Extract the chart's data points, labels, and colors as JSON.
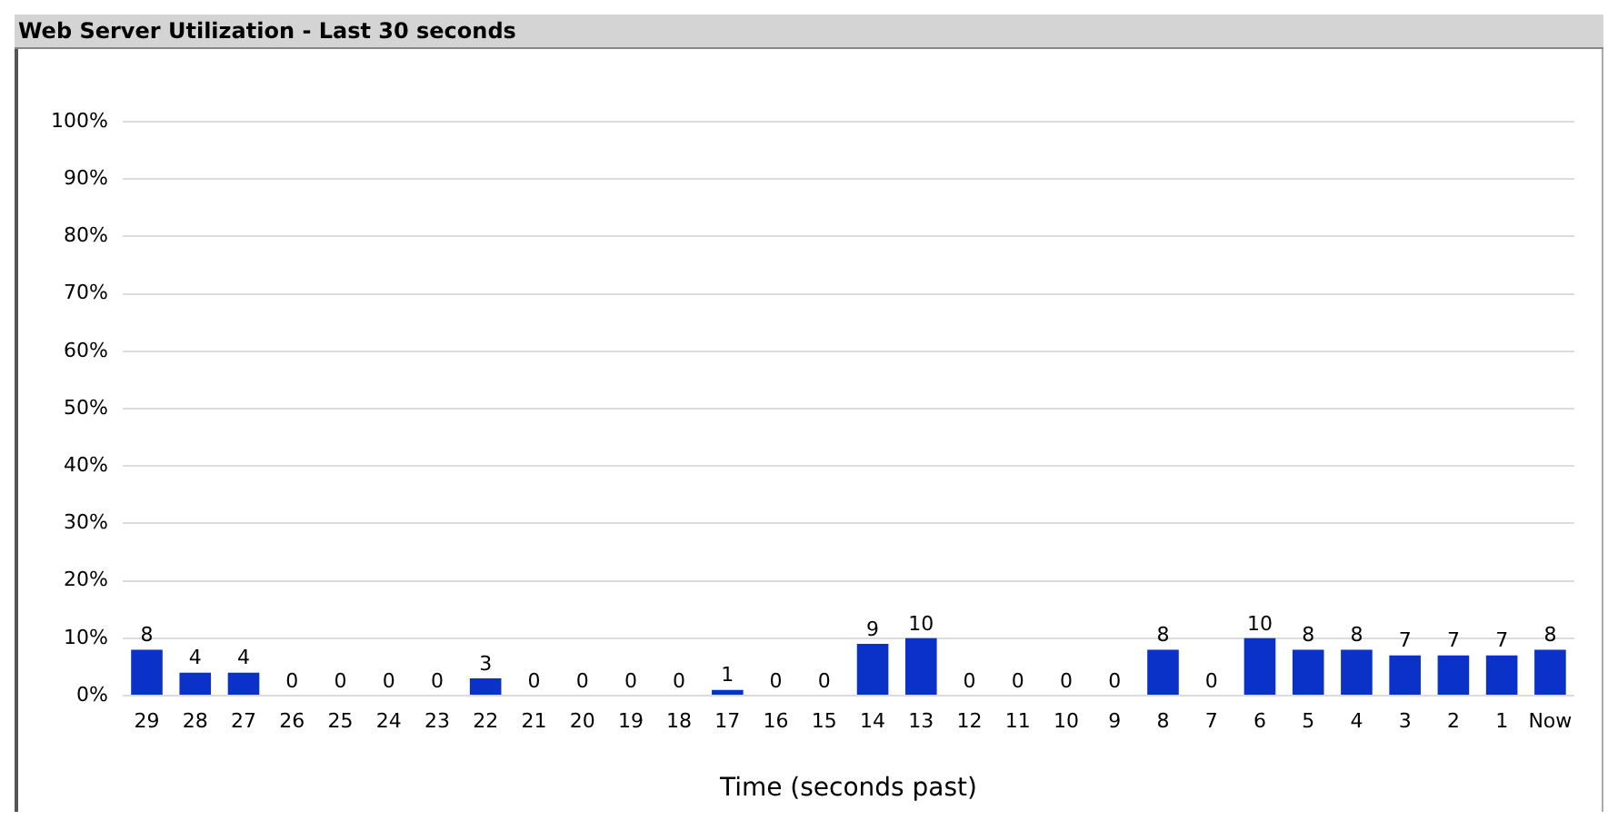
{
  "chart_data": {
    "type": "bar",
    "title": "Web Server Utilization - Last 30 seconds",
    "xlabel": "Time (seconds past)",
    "categories": [
      "29",
      "28",
      "27",
      "26",
      "25",
      "24",
      "23",
      "22",
      "21",
      "20",
      "19",
      "18",
      "17",
      "16",
      "15",
      "14",
      "13",
      "12",
      "11",
      "10",
      "9",
      "8",
      "7",
      "6",
      "5",
      "4",
      "3",
      "2",
      "1",
      "Now"
    ],
    "values": [
      8,
      4,
      4,
      0,
      0,
      0,
      0,
      3,
      0,
      0,
      0,
      0,
      1,
      0,
      0,
      9,
      10,
      0,
      0,
      0,
      0,
      8,
      0,
      10,
      8,
      8,
      7,
      7,
      7,
      8
    ],
    "color": "#0a32c8",
    "ylim": [
      0,
      100
    ],
    "yticks": [
      {
        "value": 0,
        "label": "0%"
      },
      {
        "value": 10,
        "label": "10%"
      },
      {
        "value": 20,
        "label": "20%"
      },
      {
        "value": 30,
        "label": "30%"
      },
      {
        "value": 40,
        "label": "40%"
      },
      {
        "value": 50,
        "label": "50%"
      },
      {
        "value": 60,
        "label": "60%"
      },
      {
        "value": 70,
        "label": "70%"
      },
      {
        "value": 80,
        "label": "80%"
      },
      {
        "value": 90,
        "label": "90%"
      },
      {
        "value": 100,
        "label": "100%"
      }
    ],
    "grid": "y",
    "data_labels": true
  }
}
